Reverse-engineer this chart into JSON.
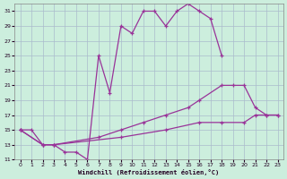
{
  "bg_color": "#cceedd",
  "grid_color": "#aabbcc",
  "line_color": "#993399",
  "xlabel": "Windchill (Refroidissement éolien,°C)",
  "xlim_min": -0.5,
  "xlim_max": 23.5,
  "ylim_min": 11,
  "ylim_max": 32,
  "yticks": [
    11,
    13,
    15,
    17,
    19,
    21,
    23,
    25,
    27,
    29,
    31
  ],
  "xticks": [
    0,
    1,
    2,
    3,
    4,
    5,
    6,
    7,
    8,
    9,
    10,
    11,
    12,
    13,
    14,
    15,
    16,
    17,
    18,
    19,
    20,
    21,
    22,
    23
  ],
  "curve1_x": [
    0,
    1,
    2,
    3,
    4,
    5,
    6,
    7,
    8,
    9,
    10,
    11,
    12,
    13,
    14,
    15,
    16,
    17,
    18
  ],
  "curve1_y": [
    15,
    15,
    13,
    13,
    12,
    12,
    11,
    25,
    20,
    29,
    28,
    31,
    31,
    29,
    31,
    32,
    31,
    30,
    25
  ],
  "curve2_x": [
    0,
    2,
    3,
    7,
    9,
    11,
    13,
    15,
    16,
    18,
    19,
    20,
    21,
    22,
    23
  ],
  "curve2_y": [
    15,
    13,
    13,
    14,
    15,
    16,
    17,
    18,
    19,
    21,
    21,
    21,
    18,
    17,
    17
  ],
  "curve3_x": [
    0,
    2,
    3,
    9,
    13,
    16,
    18,
    20,
    21,
    22,
    23
  ],
  "curve3_y": [
    15,
    13,
    13,
    14,
    15,
    16,
    16,
    16,
    17,
    17,
    17
  ]
}
